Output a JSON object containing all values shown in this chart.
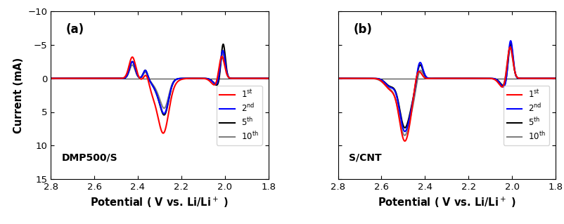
{
  "fig_width": 8.02,
  "fig_height": 3.19,
  "dpi": 100,
  "xlim": [
    2.8,
    1.8
  ],
  "ylim_bottom": 15,
  "ylim_top": -10,
  "yticks": [
    -10,
    -5,
    0,
    5,
    10,
    15
  ],
  "xticks": [
    2.8,
    2.6,
    2.4,
    2.2,
    2.0,
    1.8
  ],
  "xlabel": "Potential ( V vs. Li/Li$^+$ )",
  "ylabel": "Current (mA)",
  "colors": {
    "1st": "#FF0000",
    "2nd": "#0000FF",
    "5th": "#000000",
    "10th": "#808080"
  },
  "panel_a_label": "DMP500/S",
  "panel_b_label": "S/CNT",
  "linewidth": 1.5,
  "panel_a": {
    "1st": {
      "gaussians": [
        {
          "mu": 2.425,
          "sigma": 0.015,
          "amp": -3.2
        },
        {
          "mu": 2.36,
          "sigma": 0.012,
          "amp": -1.5
        },
        {
          "mu": 2.3,
          "sigma": 0.04,
          "amp": 3.5
        },
        {
          "mu": 2.28,
          "sigma": 0.022,
          "amp": 5.0
        },
        {
          "mu": 2.015,
          "sigma": 0.013,
          "amp": -3.8
        },
        {
          "mu": 2.04,
          "sigma": 0.02,
          "amp": 1.2
        }
      ]
    },
    "2nd": {
      "gaussians": [
        {
          "mu": 2.425,
          "sigma": 0.013,
          "amp": -2.5
        },
        {
          "mu": 2.365,
          "sigma": 0.01,
          "amp": -1.3
        },
        {
          "mu": 2.295,
          "sigma": 0.028,
          "amp": 2.5
        },
        {
          "mu": 2.275,
          "sigma": 0.018,
          "amp": 3.2
        },
        {
          "mu": 2.01,
          "sigma": 0.011,
          "amp": -4.5
        },
        {
          "mu": 2.035,
          "sigma": 0.018,
          "amp": 1.0
        }
      ]
    },
    "5th": {
      "gaussians": [
        {
          "mu": 2.425,
          "sigma": 0.013,
          "amp": -2.5
        },
        {
          "mu": 2.365,
          "sigma": 0.01,
          "amp": -1.3
        },
        {
          "mu": 2.295,
          "sigma": 0.028,
          "amp": 2.5
        },
        {
          "mu": 2.275,
          "sigma": 0.018,
          "amp": 3.4
        },
        {
          "mu": 2.008,
          "sigma": 0.01,
          "amp": -5.5
        },
        {
          "mu": 2.033,
          "sigma": 0.018,
          "amp": 1.1
        }
      ]
    },
    "10th": {
      "gaussians": [
        {
          "mu": 2.425,
          "sigma": 0.013,
          "amp": -2.0
        },
        {
          "mu": 2.365,
          "sigma": 0.01,
          "amp": -1.0
        },
        {
          "mu": 2.295,
          "sigma": 0.028,
          "amp": 2.0
        },
        {
          "mu": 2.275,
          "sigma": 0.018,
          "amp": 2.8
        },
        {
          "mu": 2.01,
          "sigma": 0.011,
          "amp": -4.0
        },
        {
          "mu": 2.035,
          "sigma": 0.018,
          "amp": 0.9
        }
      ]
    }
  },
  "panel_b": {
    "1st": {
      "gaussians": [
        {
          "mu": 2.435,
          "sigma": 0.016,
          "amp": -2.5
        },
        {
          "mu": 2.5,
          "sigma": 0.022,
          "amp": 4.5
        },
        {
          "mu": 2.48,
          "sigma": 0.03,
          "amp": 5.5
        },
        {
          "mu": 2.56,
          "sigma": 0.025,
          "amp": 1.5
        },
        {
          "mu": 2.01,
          "sigma": 0.013,
          "amp": -5.2
        },
        {
          "mu": 2.038,
          "sigma": 0.02,
          "amp": 1.5
        }
      ]
    },
    "2nd": {
      "gaussians": [
        {
          "mu": 2.425,
          "sigma": 0.014,
          "amp": -3.0
        },
        {
          "mu": 2.5,
          "sigma": 0.02,
          "amp": 3.8
        },
        {
          "mu": 2.48,
          "sigma": 0.028,
          "amp": 4.8
        },
        {
          "mu": 2.56,
          "sigma": 0.022,
          "amp": 1.2
        },
        {
          "mu": 2.007,
          "sigma": 0.011,
          "amp": -6.0
        },
        {
          "mu": 2.035,
          "sigma": 0.018,
          "amp": 1.4
        }
      ]
    },
    "5th": {
      "gaussians": [
        {
          "mu": 2.425,
          "sigma": 0.014,
          "amp": -2.6
        },
        {
          "mu": 2.5,
          "sigma": 0.02,
          "amp": 3.5
        },
        {
          "mu": 2.48,
          "sigma": 0.028,
          "amp": 4.5
        },
        {
          "mu": 2.56,
          "sigma": 0.022,
          "amp": 1.1
        },
        {
          "mu": 2.007,
          "sigma": 0.011,
          "amp": -5.5
        },
        {
          "mu": 2.035,
          "sigma": 0.018,
          "amp": 1.2
        }
      ]
    },
    "10th": {
      "gaussians": [
        {
          "mu": 2.425,
          "sigma": 0.014,
          "amp": -2.2
        },
        {
          "mu": 2.5,
          "sigma": 0.022,
          "amp": 4.0
        },
        {
          "mu": 2.48,
          "sigma": 0.032,
          "amp": 5.0
        },
        {
          "mu": 2.56,
          "sigma": 0.028,
          "amp": 1.3
        },
        {
          "mu": 2.01,
          "sigma": 0.013,
          "amp": -5.0
        },
        {
          "mu": 2.038,
          "sigma": 0.02,
          "amp": 1.3
        }
      ]
    }
  }
}
